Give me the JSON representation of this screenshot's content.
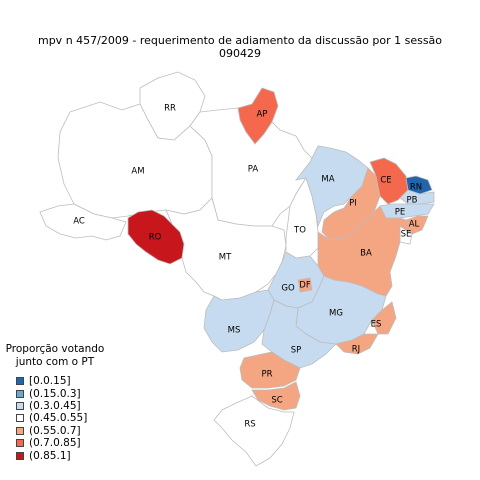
{
  "title": {
    "line1": "mpv  n  457/2009 - requerimento de adiamento da discussão por 1 sessão",
    "line2": "090429"
  },
  "legend": {
    "title_line1": "Proporção votando",
    "title_line2": "junto com o PT",
    "items": [
      {
        "label": "[0.0.15]",
        "color": "#2166ac"
      },
      {
        "label": "(0.15.0.3]",
        "color": "#67a9cf"
      },
      {
        "label": "(0.3.0.45]",
        "color": "#c6dbef"
      },
      {
        "label": "(0.45.0.55]",
        "color": "#ffffff"
      },
      {
        "label": "(0.55.0.7]",
        "color": "#f4a582"
      },
      {
        "label": "(0.7.0.85]",
        "color": "#f4694d"
      },
      {
        "label": "(0.85.1]",
        "color": "#c8161d"
      }
    ]
  },
  "states": {
    "RR": {
      "label": "RR",
      "color": "#ffffff"
    },
    "AP": {
      "label": "AP",
      "color": "#f4694d"
    },
    "AM": {
      "label": "AM",
      "color": "#ffffff"
    },
    "PA": {
      "label": "PA",
      "color": "#ffffff"
    },
    "AC": {
      "label": "AC",
      "color": "#ffffff"
    },
    "RO": {
      "label": "RO",
      "color": "#c8161d"
    },
    "MT": {
      "label": "MT",
      "color": "#ffffff"
    },
    "TO": {
      "label": "TO",
      "color": "#ffffff"
    },
    "MA": {
      "label": "MA",
      "color": "#c6dbef"
    },
    "PI": {
      "label": "PI",
      "color": "#f4a582"
    },
    "CE": {
      "label": "CE",
      "color": "#f4694d"
    },
    "RN": {
      "label": "RN",
      "color": "#2166ac"
    },
    "PB": {
      "label": "PB",
      "color": "#c6dbef"
    },
    "PE": {
      "label": "PE",
      "color": "#c6dbef"
    },
    "AL": {
      "label": "AL",
      "color": "#f4a582"
    },
    "SE": {
      "label": "SE",
      "color": "#ffffff"
    },
    "BA": {
      "label": "BA",
      "color": "#f4a582"
    },
    "GO": {
      "label": "GO",
      "color": "#c6dbef"
    },
    "DF": {
      "label": "DF",
      "color": "#f4a582"
    },
    "MG": {
      "label": "MG",
      "color": "#c6dbef"
    },
    "ES": {
      "label": "ES",
      "color": "#f4a582"
    },
    "MS": {
      "label": "MS",
      "color": "#c6dbef"
    },
    "SP": {
      "label": "SP",
      "color": "#c6dbef"
    },
    "RJ": {
      "label": "RJ",
      "color": "#f4a582"
    },
    "PR": {
      "label": "PR",
      "color": "#f4a582"
    },
    "SC": {
      "label": "SC",
      "color": "#f4a582"
    },
    "RS": {
      "label": "RS",
      "color": "#ffffff"
    }
  }
}
